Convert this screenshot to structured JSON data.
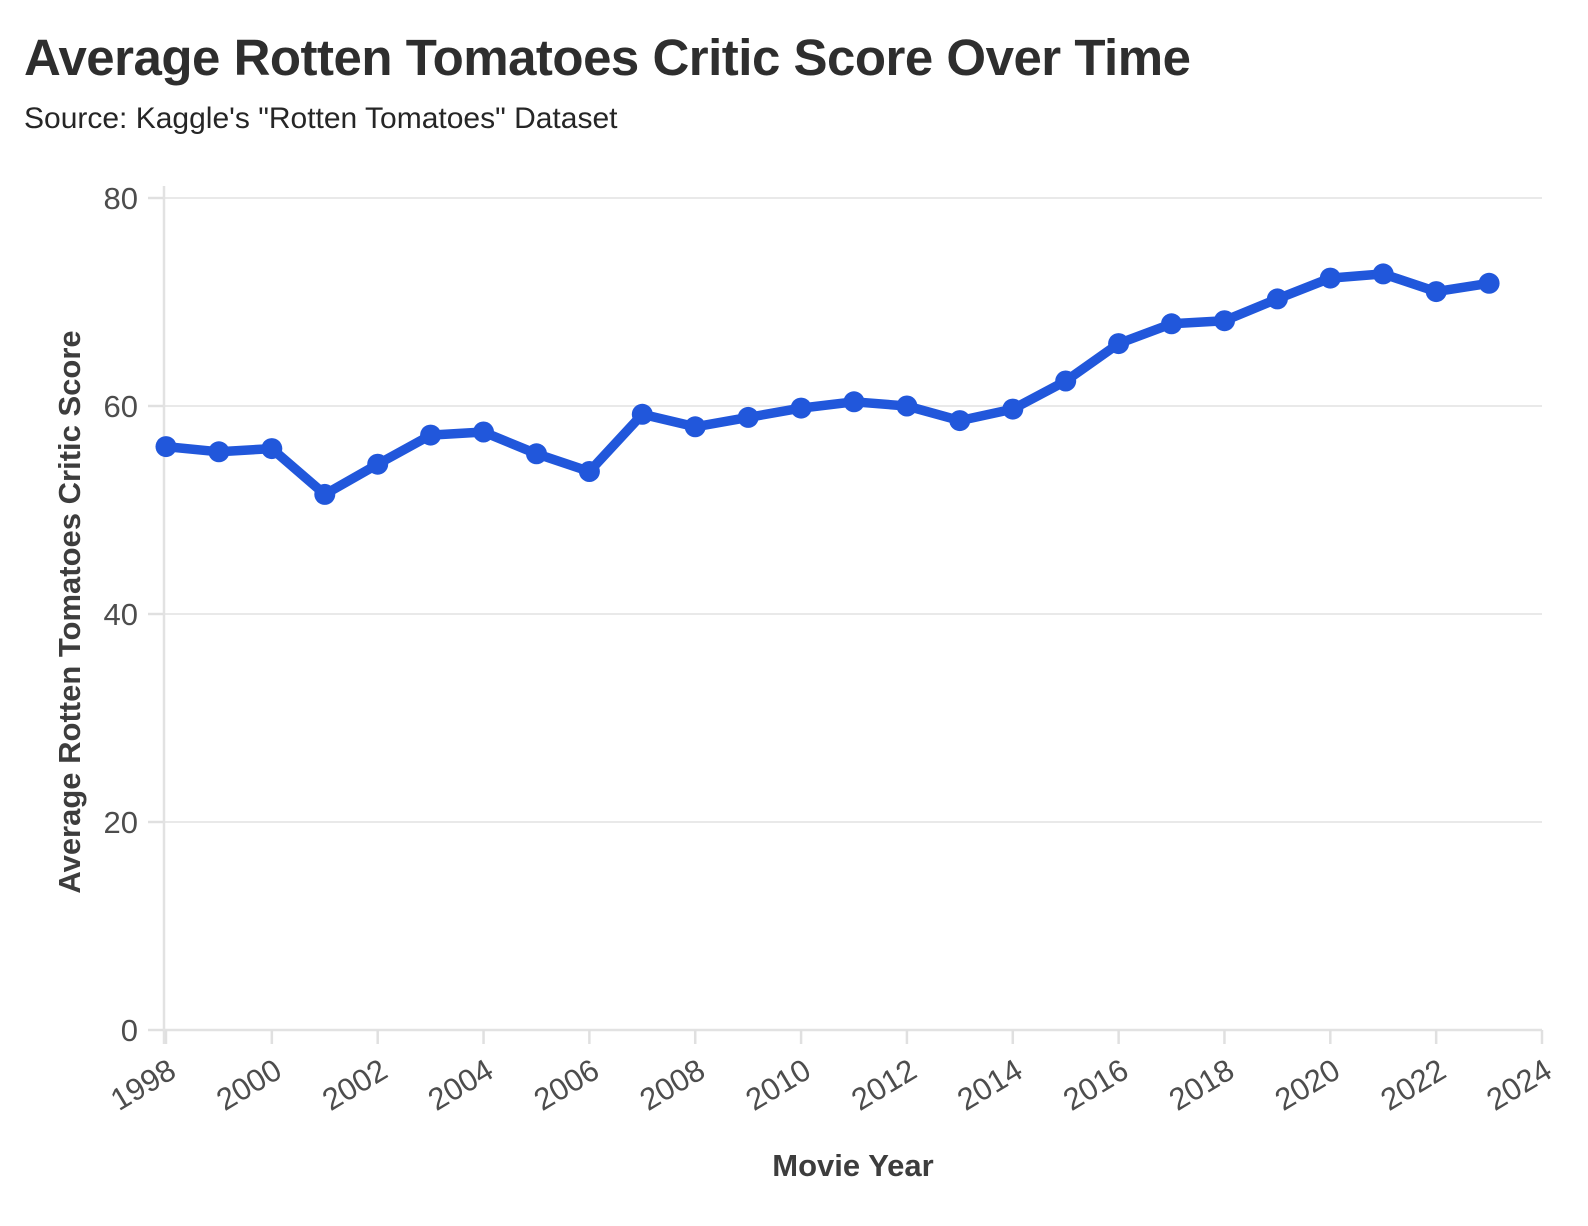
{
  "header": {
    "title": "Average Rotten Tomatoes Critic Score Over Time",
    "subtitle": "Source: Kaggle's \"Rotten Tomatoes\" Dataset"
  },
  "chart_data": {
    "type": "line",
    "title": "Average Rotten Tomatoes Critic Score Over Time",
    "subtitle": "Source: Kaggle's \"Rotten Tomatoes\" Dataset",
    "xlabel": "Movie Year",
    "ylabel": "Average Rotten Tomatoes Critic Score",
    "x": [
      1998,
      1999,
      2000,
      2001,
      2002,
      2003,
      2004,
      2005,
      2006,
      2007,
      2008,
      2009,
      2010,
      2011,
      2012,
      2013,
      2014,
      2015,
      2016,
      2017,
      2018,
      2019,
      2020,
      2021,
      2022,
      2023
    ],
    "values": [
      56.1,
      55.6,
      55.9,
      51.5,
      54.4,
      57.2,
      57.5,
      55.4,
      53.7,
      59.2,
      58.0,
      58.9,
      59.8,
      60.4,
      60.0,
      58.6,
      59.7,
      62.4,
      66.0,
      67.9,
      68.2,
      70.3,
      72.3,
      72.7,
      71.0,
      71.8
    ],
    "xlim": [
      1998,
      2024
    ],
    "ylim": [
      0,
      80
    ],
    "xticks": [
      1998,
      2000,
      2002,
      2004,
      2006,
      2008,
      2010,
      2012,
      2014,
      2016,
      2018,
      2020,
      2022,
      2024
    ],
    "yticks": [
      0,
      20,
      40,
      60,
      80
    ],
    "grid": "horizontal",
    "legend": false,
    "line_color": "#2157db",
    "marker_color": "#2157db",
    "grid_color": "#e9e9e9",
    "axis_text_color": "#4d4d4d"
  }
}
